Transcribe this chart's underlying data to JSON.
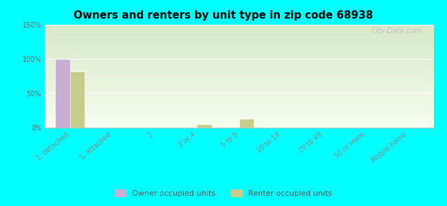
{
  "title": "Owners and renters by unit type in zip code 68938",
  "categories": [
    "1, detached",
    "1, attached",
    "2",
    "3 or 4",
    "5 to 9",
    "10 to 19",
    "20 to 49",
    "50 or more",
    "Mobile home"
  ],
  "owner_values": [
    100,
    0,
    0,
    0,
    0,
    0,
    0,
    0,
    0
  ],
  "renter_values": [
    82,
    0,
    0,
    5,
    13,
    0,
    0,
    0,
    1
  ],
  "owner_color": "#c9afd4",
  "renter_color": "#c8cc8a",
  "bar_width": 0.35,
  "ylim": [
    0,
    150
  ],
  "yticks": [
    0,
    50,
    100,
    150
  ],
  "ytick_labels": [
    "0%",
    "50%",
    "100%",
    "150%"
  ],
  "background_color": "#00FFFF",
  "plot_bg_top": "#d8e8c8",
  "plot_bg_bottom": "#f5fdf0",
  "watermark": "City-Data.com",
  "legend_owner": "Owner occupied units",
  "legend_renter": "Renter occupied units",
  "title_fontsize": 11,
  "tick_fontsize": 7,
  "legend_fontsize": 8
}
